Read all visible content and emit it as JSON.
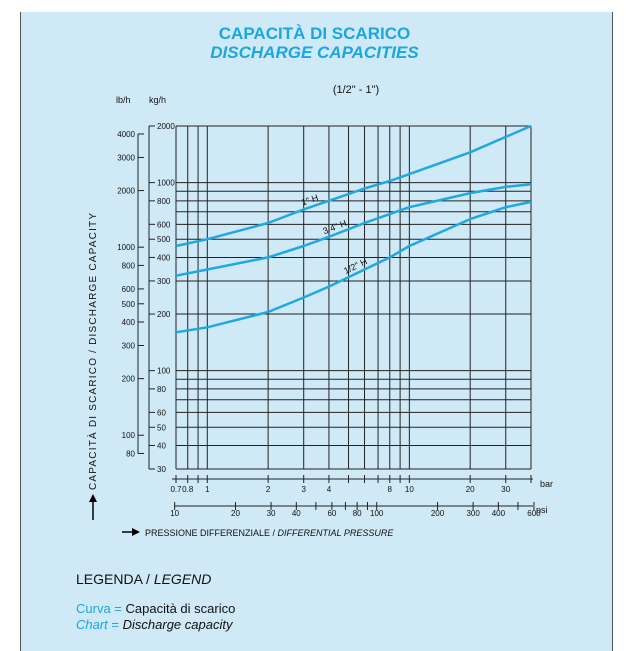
{
  "colors": {
    "background": "#cfe9f7",
    "accent": "#1aa7df",
    "curve": "#20a8e0",
    "grid": "#222222"
  },
  "chart_data": {
    "type": "line",
    "title": "CAPACITÀ DI SCARICO",
    "subtitle": "DISCHARGE CAPACITIES",
    "size_range": "(1/2\" - 1\")",
    "ylabel": "CAPACITÀ DI SCARICO / DISCHARGE CAPACITY",
    "xlabel_it": "PRESSIONE DIFFERENZIALE",
    "xlabel_en": "DIFFERENTIAL PRESSURE",
    "xlabel_sep": " / ",
    "x_unit_bar": "bar",
    "x_unit_psi": "psi",
    "y_unit_lbh": "lb/h",
    "y_unit_kgh": "kg/h",
    "x_scale": "log",
    "y_scale": "log",
    "xlim_bar": [
      0.7,
      40
    ],
    "ylim_kgh": [
      30,
      2000
    ],
    "grid": true,
    "bar_ticks": [
      {
        "v": 0.7,
        "label": "0.7"
      },
      {
        "v": 0.8,
        "label": "0.8"
      },
      {
        "v": 1,
        "label": "1"
      },
      {
        "v": 2,
        "label": "2"
      },
      {
        "v": 3,
        "label": "3"
      },
      {
        "v": 4,
        "label": "4"
      },
      {
        "v": 8,
        "label": "8"
      },
      {
        "v": 10,
        "label": "10"
      },
      {
        "v": 20,
        "label": "20"
      },
      {
        "v": 30,
        "label": "30"
      }
    ],
    "bar_minor": [
      0.9,
      5,
      6,
      7,
      9,
      40
    ],
    "psi_ticks": [
      {
        "v": 10,
        "label": "10"
      },
      {
        "v": 20,
        "label": "20"
      },
      {
        "v": 30,
        "label": "30"
      },
      {
        "v": 40,
        "label": "40"
      },
      {
        "v": 60,
        "label": "60"
      },
      {
        "v": 80,
        "label": "80"
      },
      {
        "v": 100,
        "label": "100"
      },
      {
        "v": 200,
        "label": "200"
      },
      {
        "v": 300,
        "label": "300"
      },
      {
        "v": 400,
        "label": "400"
      },
      {
        "v": 600,
        "label": "600"
      }
    ],
    "psi_minor": [
      50,
      70,
      90,
      500
    ],
    "kgh_ticks": [
      {
        "v": 30,
        "label": "30"
      },
      {
        "v": 40,
        "label": "40"
      },
      {
        "v": 50,
        "label": "50"
      },
      {
        "v": 60,
        "label": "60"
      },
      {
        "v": 80,
        "label": "80"
      },
      {
        "v": 100,
        "label": "100"
      },
      {
        "v": 200,
        "label": "200"
      },
      {
        "v": 300,
        "label": "300"
      },
      {
        "v": 400,
        "label": "400"
      },
      {
        "v": 500,
        "label": "500"
      },
      {
        "v": 600,
        "label": "600"
      },
      {
        "v": 800,
        "label": "800"
      },
      {
        "v": 1000,
        "label": "1000"
      },
      {
        "v": 2000,
        "label": "2000"
      }
    ],
    "lbh_ticks": [
      {
        "v": 80,
        "label": "80"
      },
      {
        "v": 100,
        "label": "100"
      },
      {
        "v": 200,
        "label": "200"
      },
      {
        "v": 300,
        "label": "300"
      },
      {
        "v": 400,
        "label": "400"
      },
      {
        "v": 500,
        "label": "500"
      },
      {
        "v": 600,
        "label": "600"
      },
      {
        "v": 800,
        "label": "800"
      },
      {
        "v": 1000,
        "label": "1000"
      },
      {
        "v": 2000,
        "label": "2000"
      },
      {
        "v": 3000,
        "label": "3000"
      },
      {
        "v": 4000,
        "label": "4000"
      }
    ],
    "grid_x_bar": [
      0.7,
      0.8,
      0.9,
      1,
      2,
      3,
      4,
      5,
      6,
      7,
      8,
      9,
      10,
      20,
      30,
      40
    ],
    "grid_y_kgh": [
      30,
      40,
      50,
      60,
      70,
      80,
      90,
      100,
      200,
      300,
      400,
      500,
      600,
      700,
      800,
      900,
      1000,
      2000
    ],
    "series": [
      {
        "name": "1\" H",
        "x": [
          0.7,
          1,
          2,
          3,
          4,
          6,
          8,
          10,
          20,
          30,
          40
        ],
        "y": [
          460,
          500,
          610,
          720,
          800,
          930,
          1020,
          1110,
          1450,
          1750,
          2000
        ]
      },
      {
        "name": "3/4\" H",
        "x": [
          0.7,
          1,
          2,
          3,
          4,
          6,
          8,
          10,
          20,
          30,
          40
        ],
        "y": [
          320,
          345,
          400,
          460,
          515,
          610,
          680,
          740,
          880,
          950,
          980
        ]
      },
      {
        "name": "1/2\" H",
        "x": [
          0.7,
          1,
          2,
          3,
          4,
          6,
          8,
          10,
          20,
          30,
          40
        ],
        "y": [
          160,
          170,
          205,
          245,
          280,
          345,
          400,
          460,
          640,
          740,
          790
        ]
      }
    ]
  },
  "legend": {
    "title_it": "LEGENDA",
    "title_en": "LEGEND",
    "title_sep": " / ",
    "row1_key": "Curva",
    "row1_eq": " = ",
    "row1_value": "Capacità di scarico",
    "row2_key": "Chart",
    "row2_eq": " = ",
    "row2_value": "Discharge capacity"
  }
}
